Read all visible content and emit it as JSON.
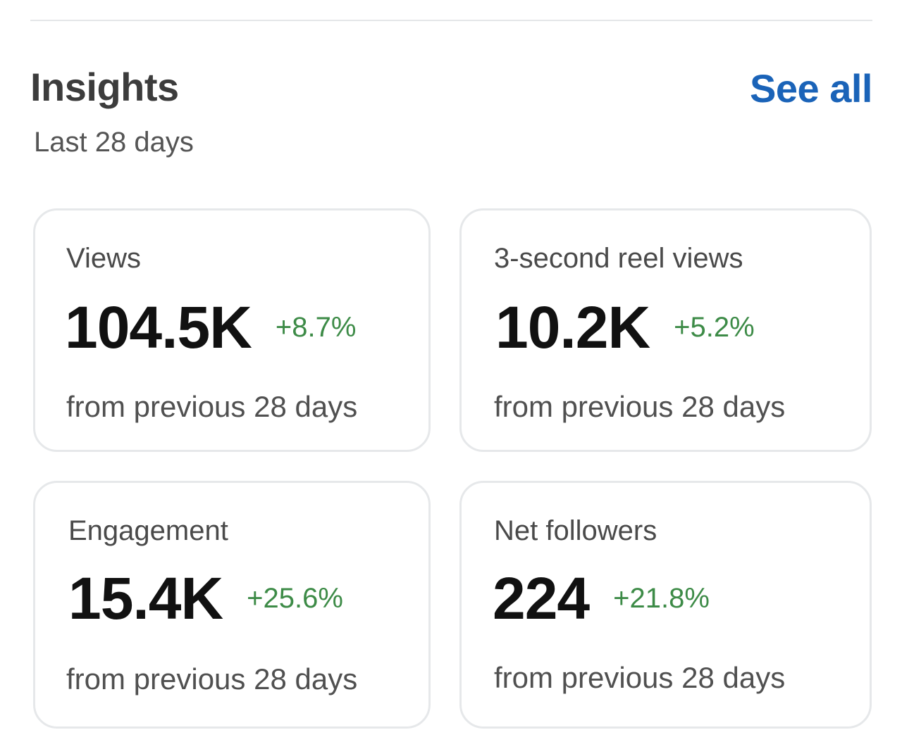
{
  "header": {
    "title": "Insights",
    "subtitle": "Last 28 days",
    "see_all_label": "See all"
  },
  "cards": [
    {
      "label": "Views",
      "value": "104.5K",
      "change": "+8.7%",
      "footer": "from previous 28 days"
    },
    {
      "label": "3-second reel views",
      "value": "10.2K",
      "change": "+5.2%",
      "footer": "from previous 28 days"
    },
    {
      "label": "Engagement",
      "value": "15.4K",
      "change": "+25.6%",
      "footer": "from previous 28 days"
    },
    {
      "label": "Net followers",
      "value": "224",
      "change": "+21.8%",
      "footer": "from previous 28 days"
    }
  ],
  "colors": {
    "accent": "#1a63b8",
    "positive_change": "#3d8b47",
    "card_border": "#e6e8ea"
  }
}
